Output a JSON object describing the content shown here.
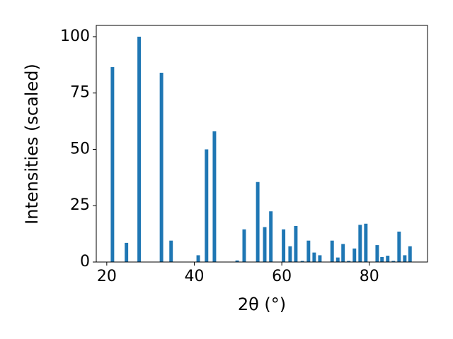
{
  "chart_data": {
    "type": "bar",
    "xlabel": "2θ (°)",
    "ylabel": "Intensities (scaled)",
    "color": "#1f77b4",
    "x": [
      21.3,
      24.5,
      27.4,
      32.5,
      34.7,
      40.9,
      42.8,
      44.6,
      49.8,
      51.4,
      54.5,
      56.1,
      57.5,
      60.4,
      61.9,
      63.2,
      64.7,
      66.1,
      67.4,
      68.7,
      71.5,
      72.8,
      74.0,
      75.3,
      76.6,
      77.9,
      79.2,
      81.8,
      82.9,
      84.2,
      85.5,
      86.8,
      88.1,
      89.3
    ],
    "values": [
      86.5,
      8.5,
      100,
      84,
      9.5,
      3,
      50,
      58,
      0.7,
      14.5,
      35.5,
      15.5,
      22.5,
      14.5,
      7,
      16,
      0.5,
      9.5,
      4.2,
      3,
      9.5,
      2,
      8,
      0.5,
      6,
      16.5,
      17,
      7.5,
      2.2,
      2.8,
      0.5,
      13.5,
      3,
      7
    ],
    "xlim": [
      17.6,
      93.3
    ],
    "ylim": [
      0,
      105
    ],
    "xticks": [
      20,
      40,
      60,
      80
    ],
    "yticks": [
      0,
      25,
      50,
      75,
      100
    ]
  }
}
